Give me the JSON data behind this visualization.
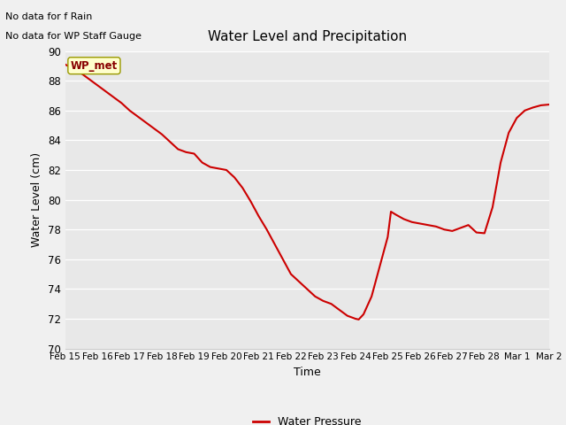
{
  "title": "Water Level and Precipitation",
  "xlabel": "Time",
  "ylabel": "Water Level (cm)",
  "ylim": [
    70,
    90
  ],
  "background_color": "#e8e8e8",
  "line_color": "#cc0000",
  "annotation_line1": "No data for f Rain",
  "annotation_line2": "No data for WP Staff Gauge",
  "legend_box_label": "WP_met",
  "legend_box_bg": "#ffffcc",
  "legend_box_border": "#999900",
  "bottom_legend_label": "Water Pressure",
  "yticks": [
    70,
    72,
    74,
    76,
    78,
    80,
    82,
    84,
    86,
    88,
    90
  ],
  "x_vals": [
    0.0,
    0.25,
    0.5,
    0.75,
    1.0,
    1.25,
    1.5,
    1.75,
    2.0,
    2.25,
    2.5,
    2.75,
    3.0,
    3.25,
    3.5,
    3.75,
    4.0,
    4.25,
    4.5,
    4.75,
    5.0,
    5.25,
    5.5,
    5.75,
    6.0,
    6.25,
    6.5,
    6.75,
    7.0,
    7.25,
    7.5,
    7.75,
    8.0,
    8.25,
    8.5,
    8.75,
    9.0,
    9.1,
    9.25,
    9.5,
    9.75,
    10.0,
    10.1,
    10.25,
    10.5,
    10.75,
    11.0,
    11.25,
    11.5,
    11.75,
    12.0,
    12.25,
    12.5,
    12.6,
    12.75,
    13.0,
    13.25,
    13.5,
    13.75,
    14.0,
    14.25,
    14.5,
    14.75,
    15.0
  ],
  "values": [
    89.1,
    88.8,
    88.5,
    88.1,
    87.7,
    87.3,
    86.9,
    86.5,
    86.0,
    85.6,
    85.2,
    84.8,
    84.4,
    83.9,
    83.4,
    83.2,
    83.1,
    82.5,
    82.2,
    82.1,
    82.0,
    81.5,
    80.8,
    79.9,
    78.9,
    78.0,
    77.0,
    76.0,
    75.0,
    74.5,
    74.0,
    73.5,
    73.2,
    73.0,
    72.6,
    72.2,
    72.0,
    71.95,
    72.3,
    73.5,
    75.5,
    77.5,
    79.2,
    79.0,
    78.7,
    78.5,
    78.4,
    78.3,
    78.2,
    78.0,
    77.9,
    78.1,
    78.3,
    78.1,
    77.8,
    77.75,
    79.5,
    82.5,
    84.5,
    85.5,
    86.0,
    86.2,
    86.35,
    86.4
  ],
  "xtick_labels": [
    "Feb 15",
    "Feb 16",
    "Feb 17",
    "Feb 18",
    "Feb 19",
    "Feb 20",
    "Feb 21",
    "Feb 22",
    "Feb 23",
    "Feb 24",
    "Feb 25",
    "Feb 26",
    "Feb 27",
    "Feb 28",
    "Mar 1",
    "Mar 2"
  ],
  "xlim": [
    0,
    15
  ]
}
